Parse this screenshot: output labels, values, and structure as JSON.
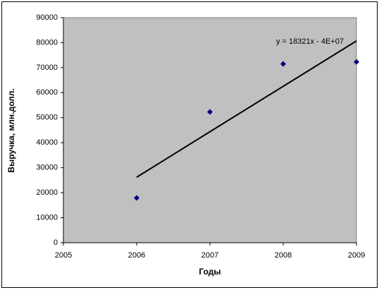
{
  "chart_data": {
    "type": "scatter",
    "x_label": "Годы",
    "y_label": "Выручка, млн.долл.",
    "annotation": "y = 18321x - 4E+07",
    "series": [
      {
        "color": "#000080",
        "x": [
          2006,
          2007,
          2008,
          2009
        ],
        "values": [
          17900,
          52300,
          71500,
          72300
        ]
      }
    ],
    "trendline": {
      "color": "#000000",
      "x": [
        2006,
        2009
      ],
      "values": [
        26200,
        80700
      ]
    },
    "xlim": [
      2005,
      2009
    ],
    "xticks": [
      2005,
      2006,
      2007,
      2008,
      2009
    ],
    "ylim": [
      0,
      90000
    ],
    "yticks": [
      0,
      10000,
      20000,
      30000,
      40000,
      50000,
      60000,
      70000,
      80000,
      90000
    ],
    "grid": false,
    "plot_background": "#c0c0c0"
  }
}
